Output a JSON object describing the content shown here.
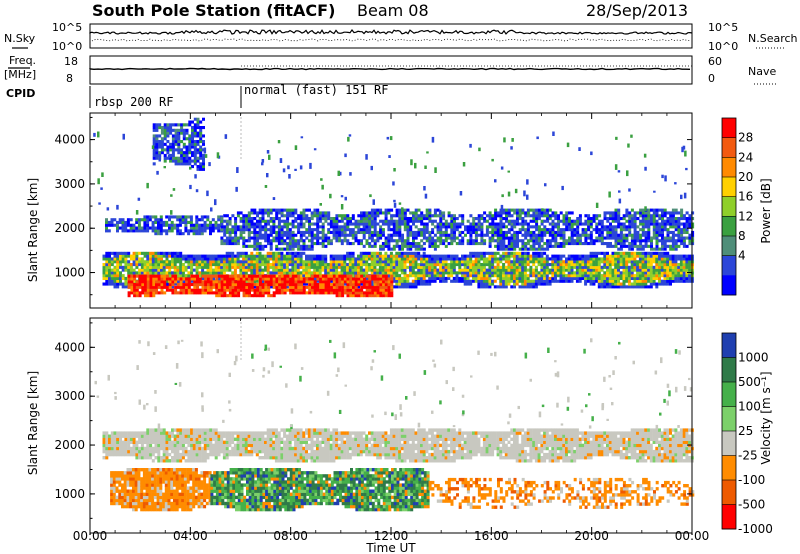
{
  "header": {
    "title": "South Pole Station (fitACF)",
    "beam": "Beam 08",
    "date": "28/Sep/2013"
  },
  "panels": {
    "nsky": {
      "left_label": "N.Sky",
      "left_ticks": [
        "10^5",
        "10^0"
      ],
      "right_ticks": [
        "10^5",
        "10^0"
      ],
      "right_label": "N.Search"
    },
    "freq": {
      "left_label_1": "Freq.",
      "left_label_2": "[MHz]",
      "left_ticks": [
        "18",
        "8"
      ],
      "right_ticks": [
        "60",
        "0"
      ],
      "right_label": "Nave"
    },
    "cpid": {
      "label": "CPID",
      "modes": [
        "rbsp 200 RF",
        "normal (fast) 151 RF"
      ]
    }
  },
  "chart_data": [
    {
      "type": "heatmap",
      "name": "Power",
      "ylabel": "Slant Range [km]",
      "yticks": [
        "4000",
        "3000",
        "2000",
        "1000"
      ],
      "ylim": [
        200,
        4600
      ],
      "xlim": [
        0,
        24
      ],
      "colorbar": {
        "label": "Power [dB]",
        "ticks": [
          "28",
          "24",
          "20",
          "16",
          "12",
          "8",
          "4"
        ],
        "colors": [
          "#ff0000",
          "#f25a10",
          "#ff8a00",
          "#ffd000",
          "#8fcf2a",
          "#3aa040",
          "#4f8e79",
          "#2c46d8",
          "#0000ff"
        ]
      },
      "bands": [
        {
          "t0": 0.6,
          "t1": 5.2,
          "r0": 1850,
          "r1": 2250,
          "level": "low"
        },
        {
          "t0": 5.2,
          "t1": 24,
          "r0": 1500,
          "r1": 2400,
          "level": "low"
        },
        {
          "t0": 0.5,
          "t1": 24,
          "r0": 650,
          "r1": 1450,
          "level": "mid"
        },
        {
          "t0": 1.5,
          "t1": 12,
          "r0": 450,
          "r1": 950,
          "level": "high"
        },
        {
          "t0": 2.5,
          "t1": 4.5,
          "r0": 3300,
          "r1": 4450,
          "level": "low"
        }
      ]
    },
    {
      "type": "heatmap",
      "name": "Velocity",
      "ylabel": "Slant Range [km]",
      "yticks": [
        "4000",
        "3000",
        "2000",
        "1000"
      ],
      "ylim": [
        200,
        4600
      ],
      "xlim": [
        0,
        24
      ],
      "xticks": [
        "00:00",
        "04:00",
        "08:00",
        "12:00",
        "16:00",
        "20:00",
        "00:00"
      ],
      "xlabel": "Time UT",
      "colorbar": {
        "label": "Velocity [m s⁻¹]",
        "ticks": [
          "1000",
          "500",
          "100",
          "25",
          "-25",
          "-100",
          "-500",
          "-1000"
        ],
        "colors": [
          "#1f3fb0",
          "#2f7a48",
          "#45b04a",
          "#7cd06a",
          "#c8c8c0",
          "#ff8c00",
          "#ee5a00",
          "#ff0000"
        ]
      },
      "bands": [
        {
          "t0": 0.5,
          "t1": 24,
          "r0": 1650,
          "r1": 2300,
          "level": "gray"
        },
        {
          "t0": 0.8,
          "t1": 4.8,
          "r0": 650,
          "r1": 1500,
          "level": "orange"
        },
        {
          "t0": 4.8,
          "t1": 13.5,
          "r0": 650,
          "r1": 1500,
          "level": "green"
        },
        {
          "t0": 13.5,
          "t1": 24,
          "r0": 700,
          "r1": 1300,
          "level": "orange-sparse"
        }
      ]
    }
  ]
}
